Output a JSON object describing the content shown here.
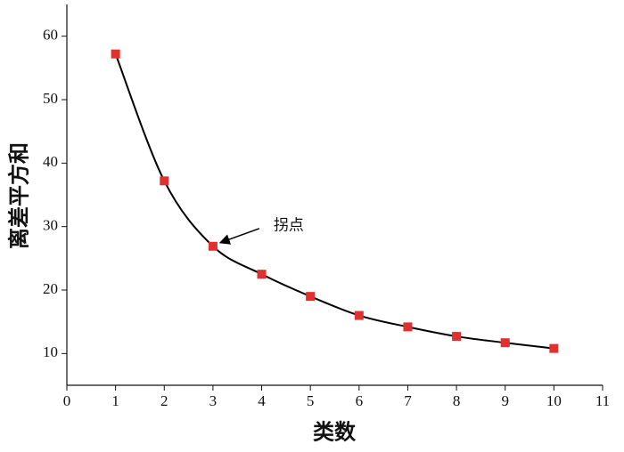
{
  "chart_data": {
    "type": "line",
    "x_label": "类数",
    "y_label": "离差平方和",
    "x": [
      1,
      2,
      3,
      4,
      5,
      6,
      7,
      8,
      9,
      10
    ],
    "series": [
      {
        "color": "#e03030",
        "values": [
          57.2,
          37.2,
          26.9,
          22.5,
          19.0,
          16.0,
          14.2,
          12.7,
          11.7,
          10.8
        ]
      }
    ],
    "xlim": [
      0,
      11
    ],
    "xticks": [
      0,
      1,
      2,
      3,
      4,
      5,
      6,
      7,
      8,
      9,
      10,
      11
    ],
    "ylim": [
      5,
      65
    ],
    "yticks": [
      10,
      20,
      30,
      40,
      50,
      60
    ],
    "annotation": {
      "text": "拐点",
      "x": 3,
      "y": 26.9
    }
  }
}
